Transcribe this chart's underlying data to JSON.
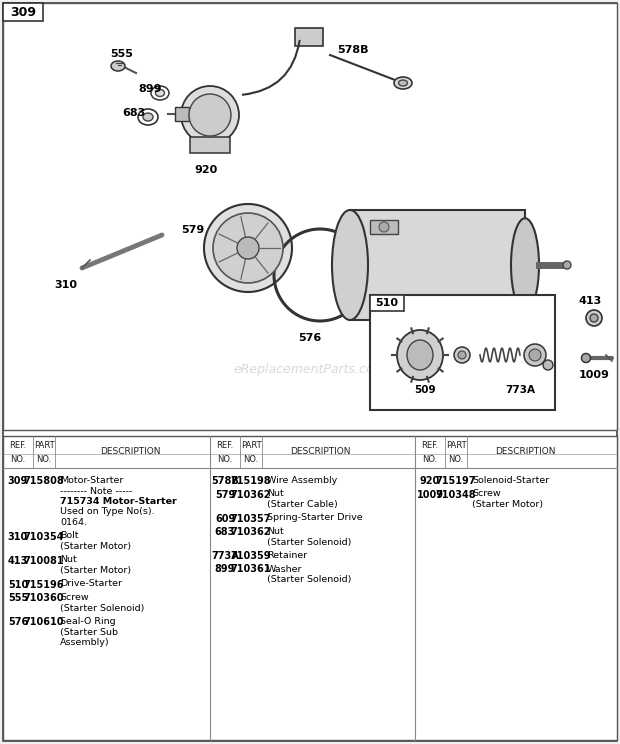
{
  "bg_color": "#f0f0f0",
  "diagram_bg": "#ffffff",
  "watermark": "eReplacementParts.com",
  "parts1": [
    {
      "ref": "309",
      "part": "715808",
      "desc": [
        "Motor-Starter",
        "-------- Note -----",
        "715734 Motor-Starter",
        "Used on Type No(s).",
        "0164."
      ]
    },
    {
      "ref": "310",
      "part": "710354",
      "desc": [
        "Bolt",
        "(Starter Motor)"
      ]
    },
    {
      "ref": "413",
      "part": "710081",
      "desc": [
        "Nut",
        "(Starter Motor)"
      ]
    },
    {
      "ref": "510",
      "part": "715196",
      "desc": [
        "Drive-Starter"
      ]
    },
    {
      "ref": "555",
      "part": "710360",
      "desc": [
        "Screw",
        "(Starter Solenoid)"
      ]
    },
    {
      "ref": "576",
      "part": "710610",
      "desc": [
        "Seal-O Ring",
        "(Starter Sub",
        "Assembly)"
      ]
    }
  ],
  "parts2": [
    {
      "ref": "578B",
      "part": "715198",
      "desc": [
        "Wire Assembly"
      ]
    },
    {
      "ref": "579",
      "part": "710362",
      "desc": [
        "Nut",
        "(Starter Cable)"
      ]
    },
    {
      "ref": "609",
      "part": "710357",
      "desc": [
        "Spring-Starter Drive"
      ]
    },
    {
      "ref": "683",
      "part": "710362",
      "desc": [
        "Nut",
        "(Starter Solenoid)"
      ]
    },
    {
      "ref": "773A",
      "part": "710359",
      "desc": [
        "Retainer"
      ]
    },
    {
      "ref": "899",
      "part": "710361",
      "desc": [
        "Washer",
        "(Starter Solenoid)"
      ]
    }
  ],
  "parts3": [
    {
      "ref": "920",
      "part": "715197",
      "desc": [
        "Solenoid-Starter"
      ]
    },
    {
      "ref": "1009",
      "part": "710348",
      "desc": [
        "Screw",
        "(Starter Motor)"
      ]
    }
  ]
}
